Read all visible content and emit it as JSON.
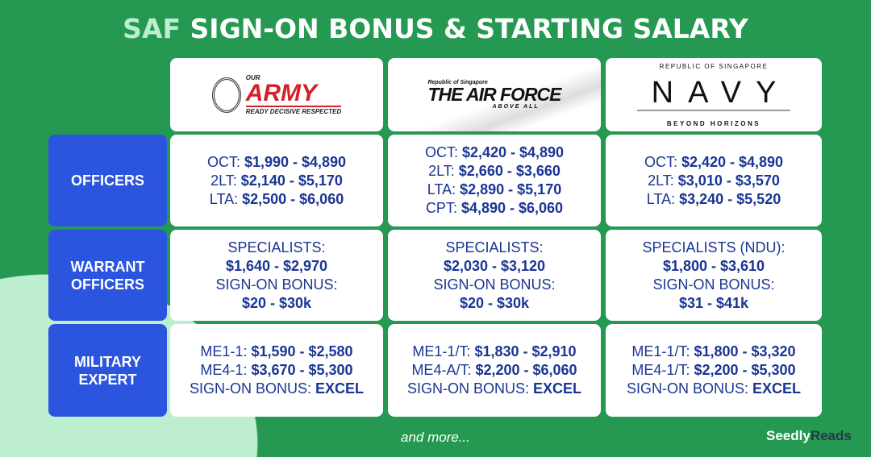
{
  "title": {
    "highlight": "SAF",
    "rest": "SIGN-ON BONUS & STARTING SALARY"
  },
  "logos": {
    "army": {
      "top": "OUR",
      "main": "ARMY",
      "tag": "READY DECISIVE RESPECTED"
    },
    "airforce": {
      "top": "Republic of Singapore",
      "main": "THE AIR FORCE",
      "tag": "ABOVE ALL"
    },
    "navy": {
      "top": "REPUBLIC OF SINGAPORE",
      "main": "NAVY",
      "tag": "BEYOND HORIZONS"
    }
  },
  "rows": [
    {
      "label": "OFFICERS",
      "cells": [
        [
          [
            "OCT: ",
            "$1,990 - $4,890"
          ],
          [
            "2LT: ",
            "$2,140 - $5,170"
          ],
          [
            "LTA: ",
            "$2,500 - $6,060"
          ]
        ],
        [
          [
            "OCT: ",
            "$2,420 - $4,890"
          ],
          [
            "2LT: ",
            "$2,660 - $3,660"
          ],
          [
            "LTA: ",
            "$2,890 - $5,170"
          ],
          [
            "CPT: ",
            "$4,890 - $6,060"
          ]
        ],
        [
          [
            "OCT: ",
            "$2,420 - $4,890"
          ],
          [
            "2LT: ",
            "$3,010 - $3,570"
          ],
          [
            "LTA: ",
            "$3,240 - $5,520"
          ]
        ]
      ]
    },
    {
      "label": "WARRANT OFFICERS",
      "cells": [
        [
          [
            "SPECIALISTS:",
            ""
          ],
          [
            "",
            "$1,640 - $2,970"
          ],
          [
            "SIGN-ON BONUS:",
            ""
          ],
          [
            "",
            "$20 - $30k"
          ]
        ],
        [
          [
            "SPECIALISTS:",
            ""
          ],
          [
            "",
            "$2,030 - $3,120"
          ],
          [
            "SIGN-ON BONUS:",
            ""
          ],
          [
            "",
            "$20 - $30k"
          ]
        ],
        [
          [
            "SPECIALISTS (NDU):",
            ""
          ],
          [
            "",
            "$1,800 - $3,610"
          ],
          [
            "SIGN-ON BONUS:",
            ""
          ],
          [
            "",
            "$31 - $41k"
          ]
        ]
      ]
    },
    {
      "label": "MILITARY EXPERT",
      "cells": [
        [
          [
            "ME1-1: ",
            "$1,590 - $2,580"
          ],
          [
            "ME4-1: ",
            "$3,670 - $5,300"
          ],
          [
            "SIGN-ON BONUS: ",
            "EXCEL"
          ]
        ],
        [
          [
            "ME1-1/T: ",
            "$1,830 - $2,910"
          ],
          [
            "ME4-A/T: ",
            "$2,200 - $6,060"
          ],
          [
            "SIGN-ON BONUS: ",
            "EXCEL"
          ]
        ],
        [
          [
            "ME1-1/T: ",
            "$1,800 - $3,320"
          ],
          [
            "ME4-1/T: ",
            "$2,200 - $5,300"
          ],
          [
            "SIGN-ON BONUS: ",
            "EXCEL"
          ]
        ]
      ]
    }
  ],
  "footer": {
    "more": "and more...",
    "brand1": "Seedly",
    "brand2": "Reads"
  }
}
